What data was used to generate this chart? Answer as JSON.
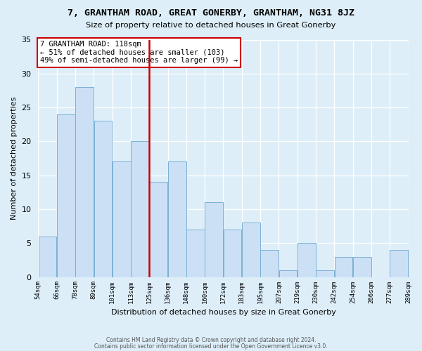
{
  "title": "7, GRANTHAM ROAD, GREAT GONERBY, GRANTHAM, NG31 8JZ",
  "subtitle": "Size of property relative to detached houses in Great Gonerby",
  "xlabel": "Distribution of detached houses by size in Great Gonerby",
  "ylabel": "Number of detached properties",
  "bin_edges": [
    "54sqm",
    "66sqm",
    "78sqm",
    "89sqm",
    "101sqm",
    "113sqm",
    "125sqm",
    "136sqm",
    "148sqm",
    "160sqm",
    "172sqm",
    "183sqm",
    "195sqm",
    "207sqm",
    "219sqm",
    "230sqm",
    "242sqm",
    "254sqm",
    "266sqm",
    "277sqm",
    "289sqm"
  ],
  "bar_values": [
    6,
    24,
    28,
    23,
    17,
    20,
    14,
    17,
    7,
    11,
    7,
    8,
    4,
    1,
    5,
    1,
    3,
    3,
    0,
    4
  ],
  "bar_color": "#cce0f5",
  "bar_edge_color": "#7ab0d4",
  "vline_color": "#cc0000",
  "annotation_text": "7 GRANTHAM ROAD: 118sqm\n← 51% of detached houses are smaller (103)\n49% of semi-detached houses are larger (99) →",
  "annotation_box_color": "#ffffff",
  "annotation_box_edge": "#cc0000",
  "ylim": [
    0,
    35
  ],
  "yticks": [
    0,
    5,
    10,
    15,
    20,
    25,
    30,
    35
  ],
  "footer_line1": "Contains HM Land Registry data © Crown copyright and database right 2024.",
  "footer_line2": "Contains public sector information licensed under the Open Government Licence v3.0.",
  "plot_bg": "#ddeef9",
  "fig_bg": "#ddeef9"
}
